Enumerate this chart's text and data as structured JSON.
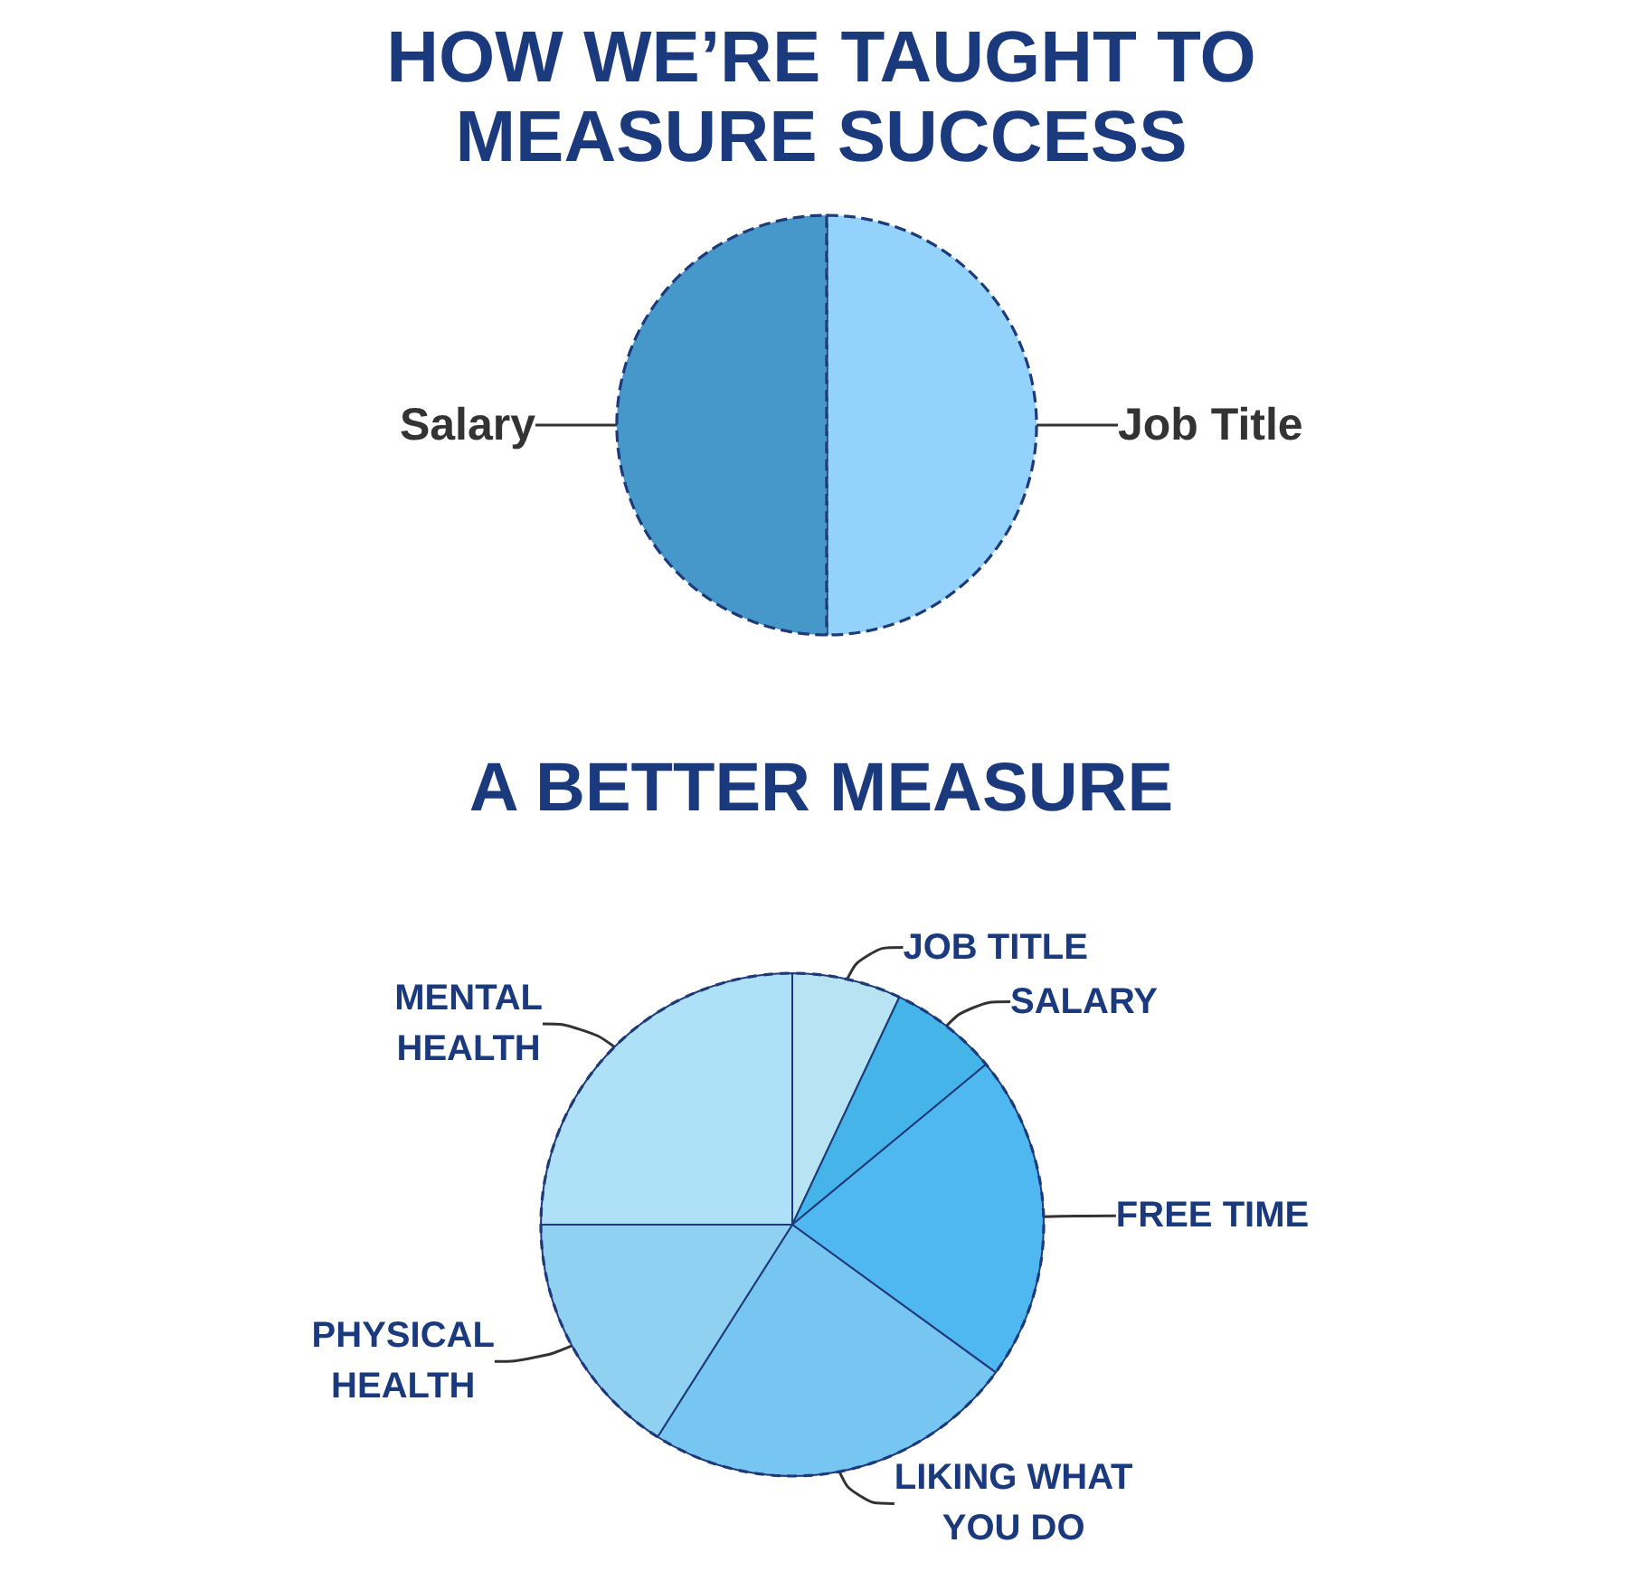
{
  "chart_data": [
    {
      "type": "pie",
      "title": "HOW WE’RE TAUGHT TO MEASURE SUCCESS",
      "categories": [
        "Job Title",
        "Salary"
      ],
      "values": [
        50,
        50
      ],
      "colors": [
        "#93d3fb",
        "#4698cb"
      ]
    },
    {
      "type": "pie",
      "title": "A BETTER MEASURE",
      "categories": [
        "JOB TITLE",
        "SALARY",
        "FREE TIME",
        "LIKING WHAT YOU DO",
        "PHYSICAL HEALTH",
        "MENTAL HEALTH"
      ],
      "values": [
        7,
        7,
        21,
        24,
        16,
        25
      ],
      "colors": [
        "#b8e3f3",
        "#45b4e8",
        "#4fb8f0",
        "#76c6f1",
        "#90d1f1",
        "#aee0f7"
      ]
    }
  ]
}
